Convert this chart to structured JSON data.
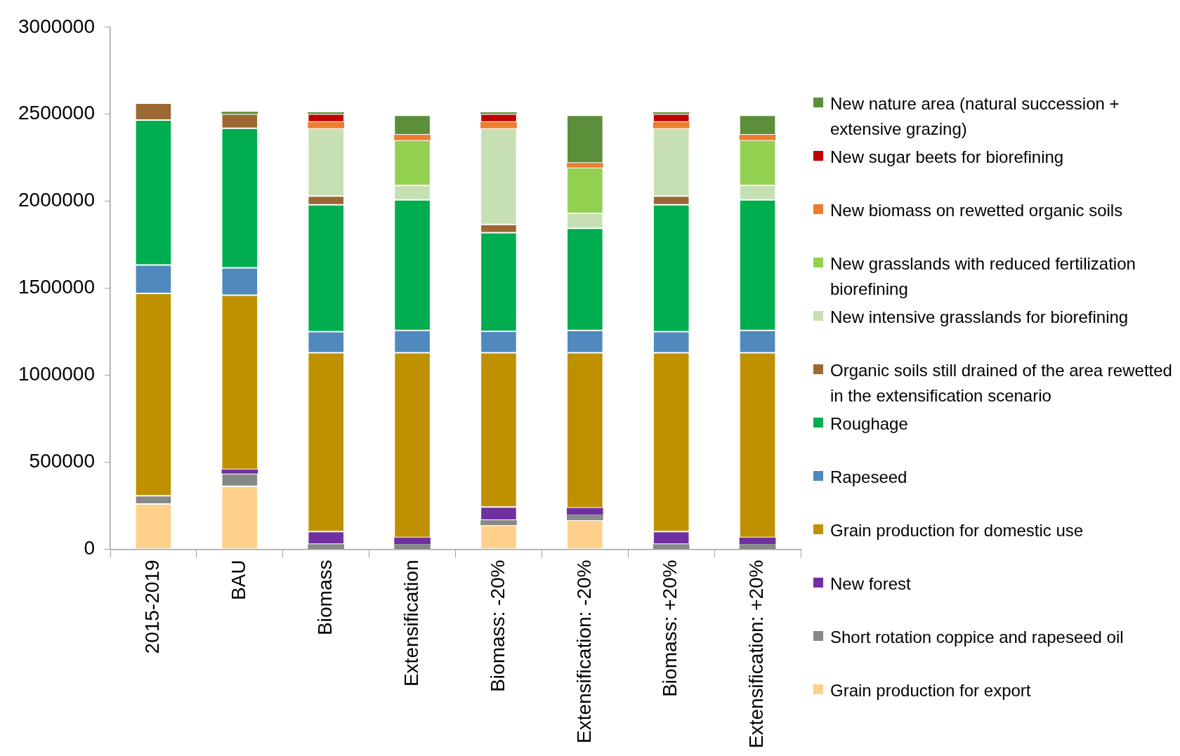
{
  "chart_data": {
    "type": "bar",
    "stacked": true,
    "legend": "right",
    "grid": false,
    "categories": [
      "2015-2019",
      "BAU",
      "Biomass",
      "Extensification",
      "Biomass: -20%",
      "Extensification: -20%",
      "Biomass: +20%",
      "Extensification: +20%"
    ],
    "ylim": [
      0,
      3000000
    ],
    "yticks": [
      0,
      500000,
      1000000,
      1500000,
      2000000,
      2500000,
      3000000
    ],
    "series": [
      {
        "name": "Grain production for export",
        "color": "#ffd08a",
        "values": [
          260000,
          362000,
          0,
          0,
          138000,
          167000,
          0,
          0
        ]
      },
      {
        "name": "Short rotation coppice and rapeseed oil",
        "color": "#888888",
        "values": [
          48000,
          73000,
          29000,
          29000,
          29000,
          32000,
          29000,
          29000
        ]
      },
      {
        "name": "New forest",
        "color": "#7030a0",
        "values": [
          0,
          24000,
          73000,
          39000,
          76000,
          39000,
          73000,
          39000
        ]
      },
      {
        "name": "Grain production for domestic use",
        "color": "#bf9000",
        "values": [
          1162000,
          1001000,
          1028000,
          1062000,
          887000,
          892000,
          1028000,
          1062000
        ]
      },
      {
        "name": "Rapeseed",
        "color": "#4f89bd",
        "values": [
          164000,
          158000,
          121000,
          128000,
          123000,
          128000,
          121000,
          128000
        ]
      },
      {
        "name": "Roughage",
        "color": "#00ad4f",
        "values": [
          833000,
          801000,
          729000,
          750000,
          566000,
          587000,
          729000,
          750000
        ]
      },
      {
        "name": "Organic soils still drained of the area rewetted in the extensification scenario",
        "color": "#9c6834",
        "values": [
          97000,
          82000,
          50000,
          0,
          48000,
          0,
          50000,
          0
        ]
      },
      {
        "name": "New intensive grasslands for biorefining",
        "color": "#c6e0b4",
        "values": [
          0,
          0,
          389000,
          83000,
          552000,
          85000,
          389000,
          83000
        ]
      },
      {
        "name": "New grasslands with reduced fertilization biorefining",
        "color": "#92d050",
        "values": [
          0,
          0,
          0,
          260000,
          0,
          263000,
          0,
          260000
        ]
      },
      {
        "name": "New biomass on rewetted organic soils",
        "color": "#ed7d31",
        "values": [
          0,
          0,
          37000,
          31000,
          37000,
          27000,
          37000,
          31000
        ]
      },
      {
        "name": "New sugar beets for biorefining",
        "color": "#c00000",
        "values": [
          0,
          0,
          45000,
          0,
          45000,
          0,
          45000,
          0
        ]
      },
      {
        "name": "New nature area (natural succession + extensive grazing)",
        "color": "#5b8f3a",
        "values": [
          0,
          13000,
          10000,
          112000,
          10000,
          274000,
          10000,
          112000
        ]
      }
    ]
  }
}
